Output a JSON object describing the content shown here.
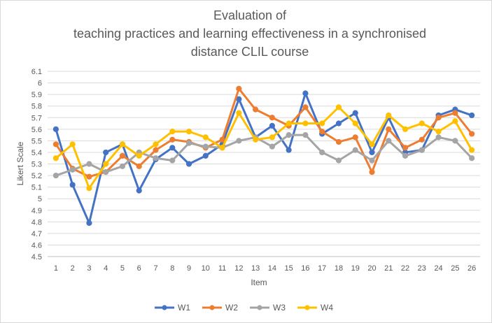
{
  "chart_data": {
    "type": "line",
    "title_lines": [
      "Evaluation of",
      "teaching practices and learning effectiveness in a synchronised",
      "distance CLIL course"
    ],
    "xlabel": "Item",
    "ylabel": "Likert Scale",
    "categories": [
      "1",
      "2",
      "3",
      "4",
      "5",
      "6",
      "7",
      "8",
      "9",
      "10",
      "11",
      "12",
      "13",
      "14",
      "15",
      "16",
      "17",
      "18",
      "19",
      "20",
      "21",
      "22",
      "23",
      "24",
      "25",
      "26"
    ],
    "ylim": [
      4.5,
      6.1
    ],
    "ytick_step": 0.1,
    "yticks": [
      "4.5",
      "4.6",
      "4.7",
      "4.8",
      "4.9",
      "5",
      "5.1",
      "5.2",
      "5.3",
      "5.4",
      "5.5",
      "5.6",
      "5.7",
      "5.8",
      "5.9",
      "6",
      "6.1"
    ],
    "grid": true,
    "legend_position": "bottom",
    "series": [
      {
        "name": "W1",
        "color": "#4472C4",
        "values": [
          5.6,
          5.12,
          4.79,
          5.4,
          5.47,
          5.07,
          5.34,
          5.44,
          5.3,
          5.37,
          5.47,
          5.86,
          5.53,
          5.63,
          5.42,
          5.91,
          5.56,
          5.65,
          5.74,
          5.4,
          5.7,
          5.4,
          5.42,
          5.72,
          5.77,
          5.72
        ]
      },
      {
        "name": "W2",
        "color": "#ED7D31",
        "values": [
          5.47,
          5.26,
          5.19,
          5.23,
          5.37,
          5.28,
          5.42,
          5.51,
          5.49,
          5.44,
          5.51,
          5.95,
          5.77,
          5.7,
          5.63,
          5.79,
          5.58,
          5.49,
          5.53,
          5.23,
          5.6,
          5.44,
          5.51,
          5.7,
          5.74,
          5.56
        ]
      },
      {
        "name": "W3",
        "color": "#A5A5A5",
        "values": [
          5.2,
          5.25,
          5.3,
          5.23,
          5.28,
          5.4,
          5.35,
          5.33,
          5.48,
          5.45,
          5.44,
          5.5,
          5.53,
          5.45,
          5.55,
          5.55,
          5.4,
          5.33,
          5.42,
          5.33,
          5.5,
          5.37,
          5.42,
          5.53,
          5.5,
          5.35
        ]
      },
      {
        "name": "W4",
        "color": "#FFC000",
        "values": [
          5.35,
          5.47,
          5.09,
          5.3,
          5.47,
          5.37,
          5.47,
          5.58,
          5.58,
          5.53,
          5.44,
          5.74,
          5.51,
          5.53,
          5.65,
          5.65,
          5.65,
          5.79,
          5.65,
          5.47,
          5.72,
          5.6,
          5.65,
          5.58,
          5.67,
          5.42
        ]
      }
    ]
  }
}
